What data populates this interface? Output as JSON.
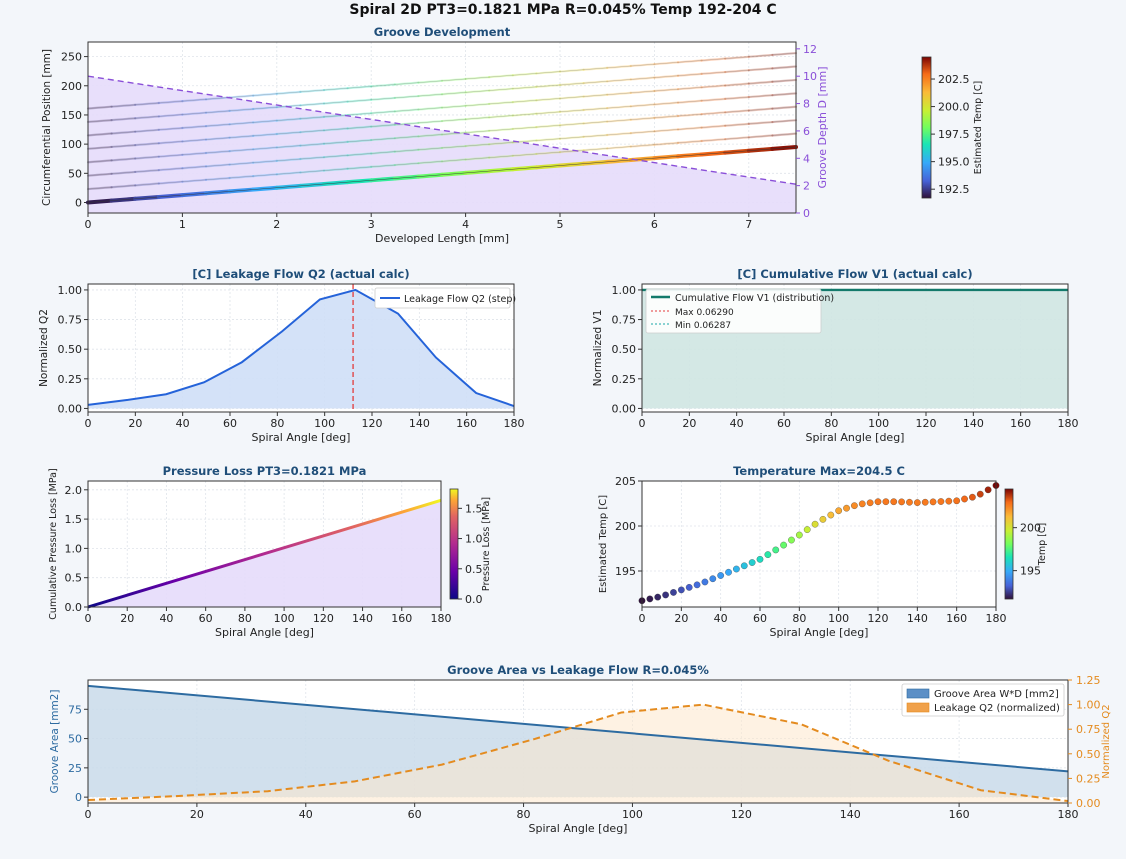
{
  "figure": {
    "suptitle": "Spiral 2D  PT3=0.1821 MPa  R=0.045%  Temp 192-204 C"
  },
  "colors": {
    "panel_title": "#1f4e79",
    "depth_axis": "#8a4fd8",
    "q2_line": "#2563d9",
    "q2_fill": "#cfdff7",
    "v1_line": "#137a6b",
    "v1_fill": "#cfe5e2",
    "max_marker": "#e33b3b",
    "area_line": "#2d6ba1",
    "area_fill": "#c9dbea",
    "leak_line": "#e48b1f",
    "leak_fill": "#fde8cc",
    "pressure_fill": "#e6dcfb"
  },
  "chart_data": [
    {
      "id": "groove",
      "type": "line",
      "title": "Groove Development",
      "xlabel": "Developed Length [mm]",
      "ylabel": "Circumferential Position [mm]",
      "y2label": "Groove Depth D [mm]",
      "xlim": [
        0,
        7.5
      ],
      "ylim": [
        -18,
        275
      ],
      "y2lim": [
        0,
        12.5
      ],
      "xticks": [
        "0",
        "1",
        "2",
        "3",
        "4",
        "5",
        "6",
        "7"
      ],
      "yticks": [
        "0",
        "50",
        "100",
        "150",
        "200",
        "250"
      ],
      "y2ticks": [
        "0",
        "2",
        "4",
        "6",
        "8",
        "10",
        "12"
      ],
      "grooves": {
        "x_end": 7.5,
        "start_y": [
          0,
          23,
          46,
          69,
          92,
          115,
          138,
          161
        ],
        "rise": 95
      },
      "depth": {
        "x": [
          0,
          7.5
        ],
        "y": [
          10,
          2.1
        ]
      },
      "colorbar": {
        "label": "Estimated Temp [C]",
        "range": [
          191.7,
          204.5
        ],
        "ticks": [
          "192.5",
          "195.0",
          "197.5",
          "200.0",
          "202.5"
        ]
      },
      "grid": true
    },
    {
      "id": "q2",
      "type": "line",
      "title": "[C] Leakage Flow Q2 (actual calc)",
      "xlabel": "Spiral Angle [deg]",
      "ylabel": "Normalized Q2",
      "xlim": [
        0,
        180
      ],
      "ylim": [
        -0.03,
        1.05
      ],
      "xticks": [
        "0",
        "20",
        "40",
        "60",
        "80",
        "100",
        "120",
        "140",
        "160",
        "180"
      ],
      "yticks": [
        "0.00",
        "0.25",
        "0.50",
        "0.75",
        "1.00"
      ],
      "series": [
        {
          "name": "Leakage Flow Q2 (step)",
          "x": [
            0,
            16,
            33,
            49,
            65,
            82,
            98,
            113,
            131,
            147,
            164,
            180
          ],
          "values": [
            0.03,
            0.07,
            0.12,
            0.22,
            0.39,
            0.65,
            0.92,
            1.0,
            0.8,
            0.43,
            0.13,
            0.02
          ]
        }
      ],
      "vline": 112,
      "legend": "top-right",
      "grid": true
    },
    {
      "id": "v1",
      "type": "line",
      "title": "[C] Cumulative Flow V1 (actual calc)",
      "xlabel": "Spiral Angle [deg]",
      "ylabel": "Normalized V1",
      "xlim": [
        0,
        180
      ],
      "ylim": [
        -0.03,
        1.05
      ],
      "xticks": [
        "0",
        "20",
        "40",
        "60",
        "80",
        "100",
        "120",
        "140",
        "160",
        "180"
      ],
      "yticks": [
        "0.00",
        "0.25",
        "0.50",
        "0.75",
        "1.00"
      ],
      "series": [
        {
          "name": "Cumulative Flow V1 (distribution)",
          "x": [
            0,
            180
          ],
          "values": [
            1.0,
            1.0
          ]
        }
      ],
      "legend_extra": [
        "Max 0.06290",
        "Min 0.06287"
      ],
      "legend": "top-left",
      "grid": true
    },
    {
      "id": "pressure",
      "type": "line",
      "title": "Pressure Loss  PT3=0.1821 MPa",
      "xlabel": "Spiral Angle [deg]",
      "ylabel": "Cumulative Pressure Loss [MPa]",
      "xlim": [
        0,
        180
      ],
      "ylim": [
        0,
        2.15
      ],
      "xticks": [
        "0",
        "20",
        "40",
        "60",
        "80",
        "100",
        "120",
        "140",
        "160",
        "180"
      ],
      "yticks": [
        "0.0",
        "0.5",
        "1.0",
        "1.5",
        "2.0"
      ],
      "series": [
        {
          "x": [
            0,
            180
          ],
          "values": [
            0,
            1.82
          ]
        }
      ],
      "colorbar": {
        "label": "Pressure Loss [MPa]",
        "range": [
          0,
          1.82
        ],
        "ticks": [
          "0.0",
          "0.5",
          "1.0",
          "1.5"
        ]
      },
      "grid": true
    },
    {
      "id": "temp",
      "type": "scatter",
      "title": "Temperature  Max=204.5 C",
      "xlabel": "Spiral Angle [deg]",
      "ylabel": "Estimated Temp [C]",
      "xlim": [
        0,
        180
      ],
      "ylim": [
        191,
        205
      ],
      "xticks": [
        "0",
        "20",
        "40",
        "60",
        "80",
        "100",
        "120",
        "140",
        "160",
        "180"
      ],
      "yticks": [
        "195",
        "200",
        "205"
      ],
      "series": [
        {
          "x": [
            0,
            10,
            20,
            30,
            40,
            50,
            60,
            70,
            80,
            90,
            100,
            110,
            120,
            130,
            140,
            150,
            160,
            170,
            180
          ],
          "values": [
            191.7,
            192.2,
            192.9,
            193.6,
            194.5,
            195.4,
            196.3,
            197.6,
            199.0,
            200.5,
            201.7,
            202.4,
            202.7,
            202.7,
            202.6,
            202.7,
            202.8,
            203.3,
            204.5
          ]
        }
      ],
      "colorbar": {
        "label": "Temp [C]",
        "range": [
          191.7,
          204.5
        ],
        "ticks": [
          "195",
          "200"
        ]
      },
      "grid": true
    },
    {
      "id": "area",
      "type": "area",
      "title": "Groove Area vs Leakage Flow  R=0.045%",
      "xlabel": "Spiral Angle [deg]",
      "ylabel": "Groove Area [mm2]",
      "y2label": "Normalized Q2",
      "xlim": [
        0,
        180
      ],
      "ylim": [
        -5,
        100
      ],
      "y2lim": [
        0,
        1.25
      ],
      "xticks": [
        "0",
        "20",
        "40",
        "60",
        "80",
        "100",
        "120",
        "140",
        "160",
        "180"
      ],
      "yticks": [
        "0",
        "25",
        "50",
        "75"
      ],
      "y2ticks": [
        "0.00",
        "0.25",
        "0.50",
        "0.75",
        "1.00",
        "1.25"
      ],
      "series": [
        {
          "name": "Groove Area W*D [mm2]",
          "axis": "left",
          "x": [
            0,
            180
          ],
          "values": [
            95,
            22
          ]
        },
        {
          "name": "Leakage Q2 (normalized)",
          "axis": "right",
          "x": [
            0,
            16,
            33,
            49,
            65,
            82,
            98,
            113,
            131,
            147,
            164,
            180
          ],
          "values": [
            0.03,
            0.07,
            0.12,
            0.22,
            0.39,
            0.65,
            0.92,
            1.0,
            0.8,
            0.43,
            0.13,
            0.02
          ]
        }
      ],
      "legend": "top-right",
      "grid": true
    }
  ]
}
